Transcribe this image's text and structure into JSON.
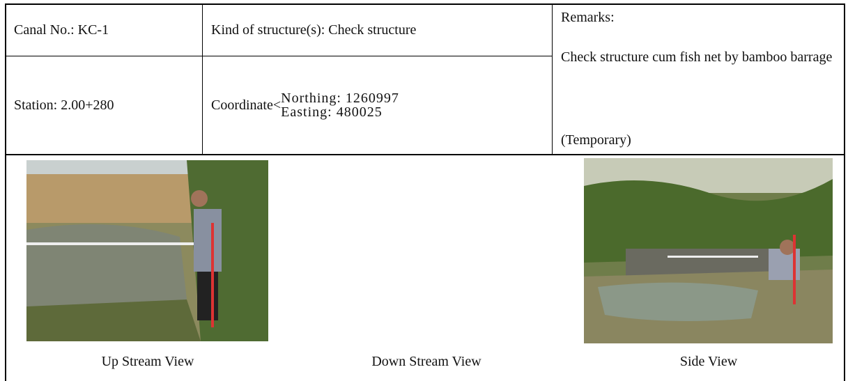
{
  "table": {
    "canal": "Canal No.:   KC-1",
    "kind": "Kind of structure(s):  Check structure",
    "station": "Station:  2.00+280",
    "coordinate": {
      "label": "Coordinate<",
      "northing": "Northing: 1260997",
      "easting": "Easting: 480025"
    },
    "remarks": {
      "title": "Remarks:",
      "text": "Check structure cum fish net by bamboo barrage",
      "note": "(Temporary)"
    }
  },
  "photos": {
    "captions": [
      "Up Stream View",
      "Down Stream View",
      "Side View"
    ]
  }
}
